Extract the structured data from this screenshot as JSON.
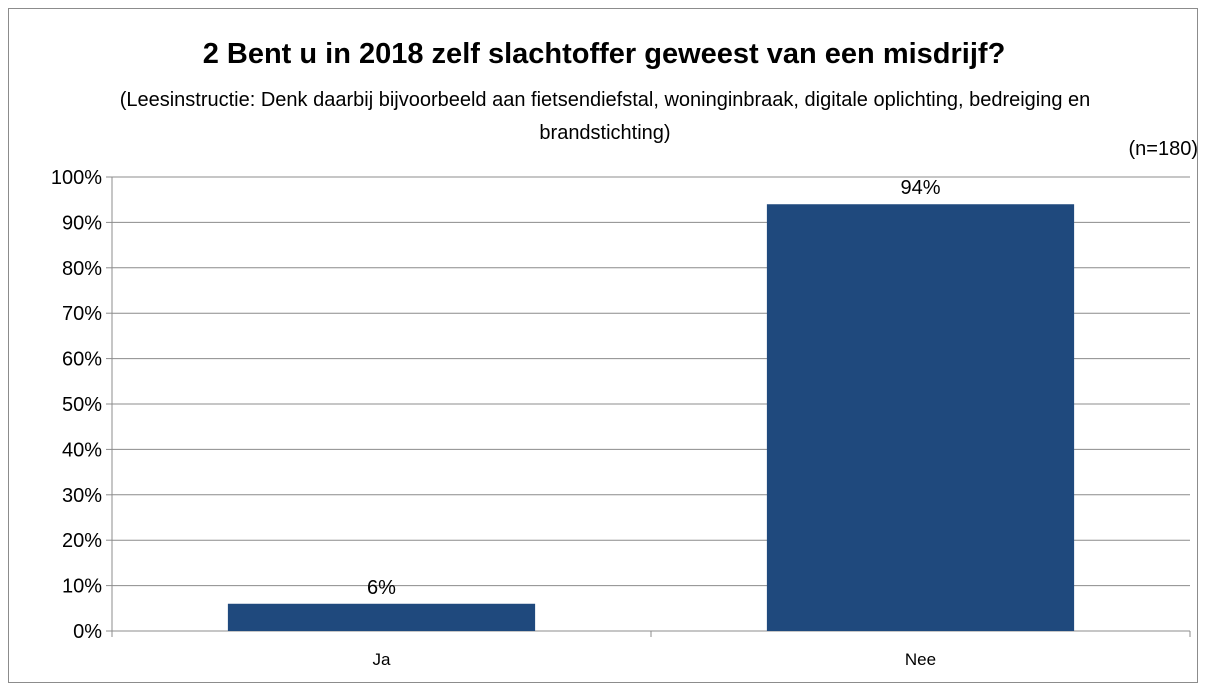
{
  "chart_data": {
    "type": "bar",
    "title": "2 Bent u in 2018 zelf slachtoffer geweest van een misdrijf?",
    "subtitle": "(Leesinstructie: Denk daarbij bijvoorbeeld aan fietsendiefstal, woninginbraak, digitale oplichting, bedreiging en brandstichting)",
    "note": "(n=180)",
    "categories": [
      "Ja",
      "Nee"
    ],
    "values": [
      6,
      94
    ],
    "value_labels": [
      "6%",
      "94%"
    ],
    "ylim": [
      0,
      100
    ],
    "y_ticks": [
      "0%",
      "10%",
      "20%",
      "30%",
      "40%",
      "50%",
      "60%",
      "70%",
      "80%",
      "90%",
      "100%"
    ],
    "xlabel": "",
    "ylabel": "",
    "grid": true,
    "legend": false,
    "bar_color": "#1f497d"
  }
}
